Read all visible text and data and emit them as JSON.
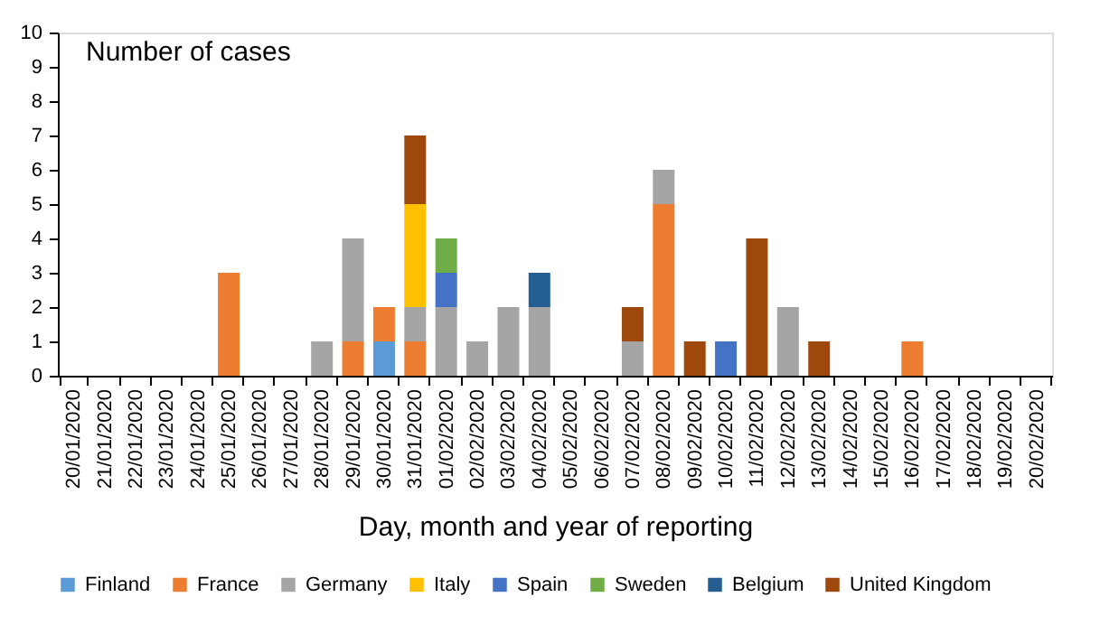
{
  "chart_data": {
    "type": "bar",
    "stacked": true,
    "ylabel": "Number of cases",
    "xlabel": "Day, month and year of reporting",
    "categories": [
      "20/01/2020",
      "21/01/2020",
      "22/01/2020",
      "23/01/2020",
      "24/01/2020",
      "25/01/2020",
      "26/01/2020",
      "27/01/2020",
      "28/01/2020",
      "29/01/2020",
      "30/01/2020",
      "31/01/2020",
      "01/02/2020",
      "02/02/2020",
      "03/02/2020",
      "04/02/2020",
      "05/02/2020",
      "06/02/2020",
      "07/02/2020",
      "08/02/2020",
      "09/02/2020",
      "10/02/2020",
      "11/02/2020",
      "12/02/2020",
      "13/02/2020",
      "14/02/2020",
      "15/02/2020",
      "16/02/2020",
      "17/02/2020",
      "18/02/2020",
      "19/02/2020",
      "20/02/2020"
    ],
    "series": [
      {
        "name": "Finland",
        "color": "#5b9bd5",
        "values": [
          null,
          null,
          null,
          null,
          null,
          null,
          null,
          null,
          null,
          null,
          1,
          null,
          null,
          null,
          null,
          null,
          null,
          null,
          null,
          null,
          null,
          null,
          null,
          null,
          null,
          null,
          null,
          null,
          null,
          null,
          null,
          null
        ]
      },
      {
        "name": "France",
        "color": "#ed7d31",
        "values": [
          null,
          null,
          null,
          null,
          null,
          3,
          null,
          null,
          null,
          1,
          1,
          1,
          null,
          null,
          null,
          null,
          null,
          null,
          null,
          5,
          null,
          null,
          null,
          null,
          null,
          null,
          null,
          1,
          null,
          null,
          null,
          null
        ]
      },
      {
        "name": "Germany",
        "color": "#a5a5a5",
        "values": [
          null,
          null,
          null,
          null,
          null,
          null,
          null,
          null,
          1,
          3,
          null,
          1,
          2,
          1,
          2,
          2,
          null,
          null,
          1,
          1,
          null,
          null,
          null,
          2,
          null,
          null,
          null,
          null,
          null,
          null,
          null,
          null
        ]
      },
      {
        "name": "Italy",
        "color": "#ffc000",
        "values": [
          null,
          null,
          null,
          null,
          null,
          null,
          null,
          null,
          null,
          null,
          null,
          3,
          null,
          null,
          null,
          null,
          null,
          null,
          null,
          null,
          null,
          null,
          null,
          null,
          null,
          null,
          null,
          null,
          null,
          null,
          null,
          null
        ]
      },
      {
        "name": "Spain",
        "color": "#4472c4",
        "values": [
          null,
          null,
          null,
          null,
          null,
          null,
          null,
          null,
          null,
          null,
          null,
          null,
          1,
          null,
          null,
          null,
          null,
          null,
          null,
          null,
          null,
          1,
          null,
          null,
          null,
          null,
          null,
          null,
          null,
          null,
          null,
          null
        ]
      },
      {
        "name": "Sweden",
        "color": "#70ad47",
        "values": [
          null,
          null,
          null,
          null,
          null,
          null,
          null,
          null,
          null,
          null,
          null,
          null,
          1,
          null,
          null,
          null,
          null,
          null,
          null,
          null,
          null,
          null,
          null,
          null,
          null,
          null,
          null,
          null,
          null,
          null,
          null,
          null
        ]
      },
      {
        "name": "Belgium",
        "color": "#255e91",
        "values": [
          null,
          null,
          null,
          null,
          null,
          null,
          null,
          null,
          null,
          null,
          null,
          null,
          null,
          null,
          null,
          1,
          null,
          null,
          null,
          null,
          null,
          null,
          null,
          null,
          null,
          null,
          null,
          null,
          null,
          null,
          null,
          null
        ]
      },
      {
        "name": "United Kingdom",
        "color": "#9e480e",
        "values": [
          null,
          null,
          null,
          null,
          null,
          null,
          null,
          null,
          null,
          null,
          null,
          2,
          null,
          null,
          null,
          null,
          null,
          null,
          1,
          null,
          1,
          null,
          4,
          null,
          1,
          null,
          null,
          null,
          null,
          null,
          null,
          null
        ]
      }
    ],
    "ylim": [
      0,
      10
    ],
    "yticks": [
      0,
      1,
      2,
      3,
      4,
      5,
      6,
      7,
      8,
      9,
      10
    ],
    "grid": false,
    "legend": "bottom"
  }
}
